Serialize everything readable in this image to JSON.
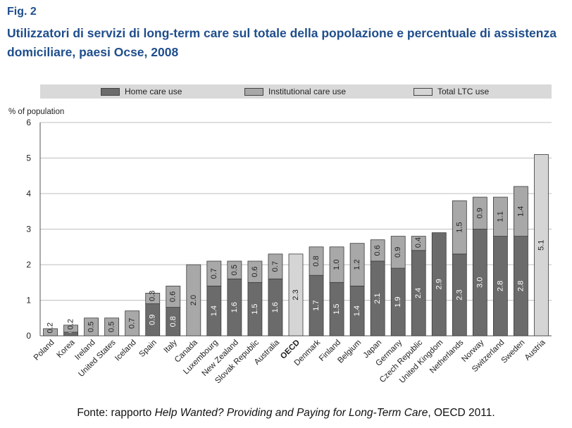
{
  "header": {
    "fig_label": "Fig. 2",
    "title": "Utilizzatori di servizi di long-term care sul totale della popolazione e percentuale di assistenza domiciliare, paesi Ocse, 2008"
  },
  "legend": {
    "home": "Home care use",
    "institutional": "Institutional care use",
    "total": "Total LTC use"
  },
  "colors": {
    "home": "#6b6b6b",
    "institutional": "#a8a8a8",
    "total": "#d5d5d5",
    "outline": "#3a3a3a",
    "grid": "#bfbfbf",
    "title": "#1f4e8c"
  },
  "source": {
    "prefix": "Fonte: rapporto ",
    "italic": "Help Wanted? Providing and Paying for Long-Term Care",
    "suffix": ", OECD 2011."
  },
  "chart_data": {
    "type": "bar",
    "stacked": true,
    "ylabel": "% of population",
    "ylim": [
      0,
      6
    ],
    "yticks": [
      0,
      1,
      2,
      3,
      4,
      5,
      6
    ],
    "grid": true,
    "legend_position": "top",
    "categories": [
      "Poland",
      "Korea",
      "Ireland",
      "United States",
      "Iceland",
      "Spain",
      "Italy",
      "Canada",
      "Luxembourg",
      "New Zealand",
      "Slovak Republic",
      "Australia",
      "OECD",
      "Denmark",
      "Finland",
      "Belgium",
      "Japan",
      "Germany",
      "Czech Republic",
      "United Kingdom",
      "Netherlands",
      "Norway",
      "Switzerland",
      "Sweden",
      "Austria"
    ],
    "bold_categories": [
      "OECD"
    ],
    "series": [
      {
        "name": "Home care use",
        "key": "home",
        "values": [
          null,
          0.1,
          null,
          null,
          null,
          0.9,
          0.8,
          null,
          1.4,
          1.6,
          1.5,
          1.6,
          null,
          1.7,
          1.5,
          1.4,
          2.1,
          1.9,
          2.4,
          2.9,
          2.3,
          3.0,
          2.8,
          2.8,
          null
        ]
      },
      {
        "name": "Institutional care use",
        "key": "institutional",
        "values": [
          0.2,
          0.2,
          0.5,
          0.5,
          0.7,
          0.3,
          0.6,
          2.0,
          0.7,
          0.5,
          0.6,
          0.7,
          null,
          0.8,
          1.0,
          1.2,
          0.6,
          0.9,
          0.4,
          null,
          1.5,
          0.9,
          1.1,
          1.4,
          null
        ]
      },
      {
        "name": "Total LTC use",
        "key": "total",
        "values": [
          null,
          null,
          null,
          null,
          null,
          null,
          null,
          null,
          null,
          null,
          null,
          null,
          2.3,
          null,
          null,
          null,
          null,
          null,
          null,
          null,
          null,
          null,
          null,
          null,
          5.1
        ]
      }
    ],
    "data_labels": {
      "home": [
        "",
        "0.1",
        "",
        "",
        "",
        "0.9",
        "0.8",
        "",
        "1.4",
        "1.6",
        "1.5",
        "1.6",
        "",
        "1.7",
        "1.5",
        "1.4",
        "2.1",
        "1.9",
        "2.4",
        "2.9",
        "2.3",
        "3.0",
        "2.8",
        "2.8",
        ""
      ],
      "institutional": [
        "0.2",
        "0.2",
        "0.5",
        "0.5",
        "0.7",
        "0.3",
        "0.6",
        "2.0",
        "0.7",
        "0.5",
        "0.6",
        "0.7",
        "",
        "0.8",
        "1.0",
        "1.2",
        "0.6",
        "0.9",
        "0.4",
        "",
        "1.5",
        "0.9",
        "1.1",
        "1.4",
        ""
      ],
      "total": [
        "",
        "",
        "",
        "",
        "",
        "",
        "",
        "",
        "",
        "",
        "",
        "",
        "2.3",
        "",
        "",
        "",
        "",
        "",
        "",
        "",
        "",
        "",
        "",
        "",
        "5.1"
      ]
    }
  }
}
